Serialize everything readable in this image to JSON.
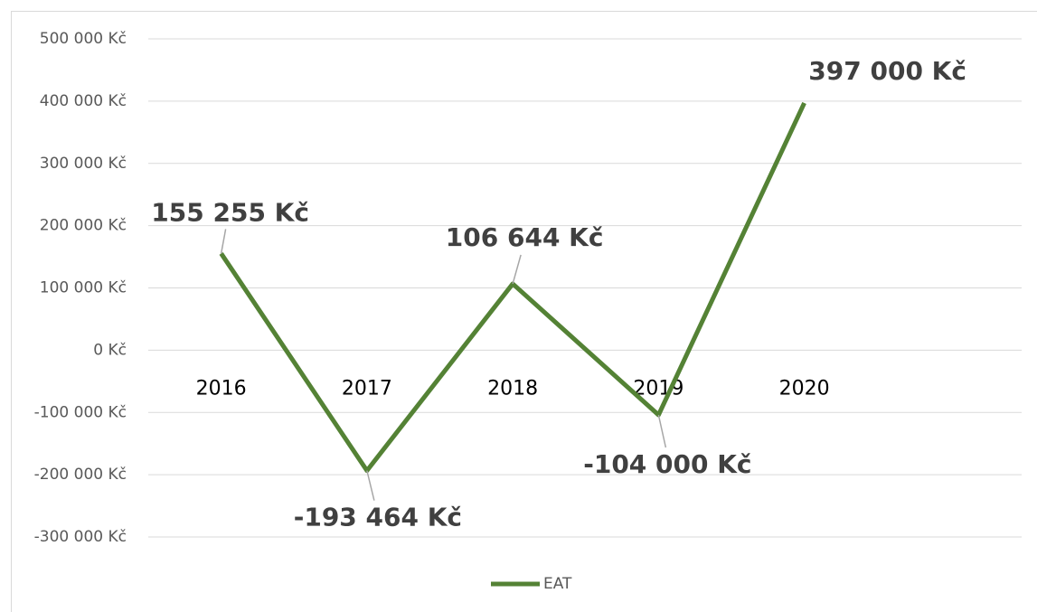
{
  "chart_data": {
    "type": "line",
    "categories": [
      "2016",
      "2017",
      "2018",
      "2019",
      "2020"
    ],
    "series": [
      {
        "name": "EAT",
        "color": "#548235",
        "values": [
          155255,
          -193464,
          106644,
          -104000,
          397000
        ],
        "value_labels": [
          "155 255 Kč",
          "-193 464 Kč",
          "106 644 Kč",
          "-104 000 Kč",
          "397 000 Kč"
        ]
      }
    ],
    "ylim": [
      -300000,
      500000
    ],
    "yticks": [
      {
        "value": -300000,
        "label": "-300 000 Kč"
      },
      {
        "value": -200000,
        "label": "-200 000 Kč"
      },
      {
        "value": -100000,
        "label": "-100 000 Kč"
      },
      {
        "value": 0,
        "label": "0 Kč"
      },
      {
        "value": 100000,
        "label": "100 000 Kč"
      },
      {
        "value": 200000,
        "label": "200 000 Kč"
      },
      {
        "value": 300000,
        "label": "300 000 Kč"
      },
      {
        "value": 400000,
        "label": "400 000 Kč"
      },
      {
        "value": 500000,
        "label": "500 000 Kč"
      }
    ],
    "grid": true,
    "legend": "bottom"
  }
}
